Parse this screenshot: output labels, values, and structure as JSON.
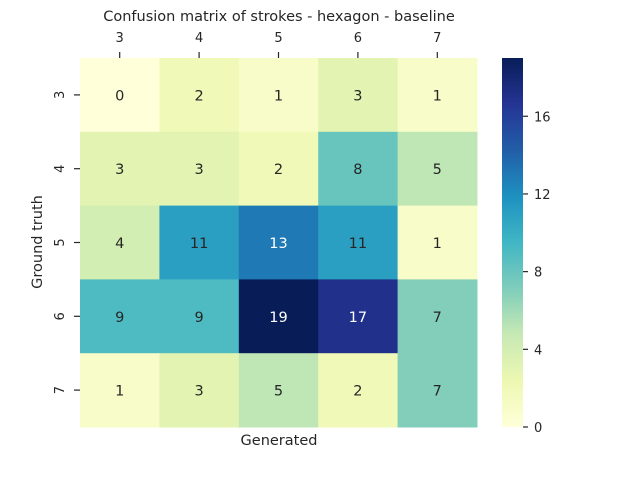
{
  "chart_data": {
    "type": "heatmap",
    "title": "Confusion matrix of strokes - hexagon - baseline",
    "xlabel": "Generated",
    "ylabel": "Ground truth",
    "x_categories": [
      "3",
      "4",
      "5",
      "6",
      "7"
    ],
    "y_categories": [
      "3",
      "4",
      "5",
      "6",
      "7"
    ],
    "values": [
      [
        0,
        2,
        1,
        3,
        1
      ],
      [
        3,
        3,
        2,
        8,
        5
      ],
      [
        4,
        11,
        13,
        11,
        1
      ],
      [
        9,
        9,
        19,
        17,
        7
      ],
      [
        1,
        3,
        5,
        2,
        7
      ]
    ],
    "colorscale": "YlGnBu",
    "vmin": 0,
    "vmax": 19,
    "colorbar_ticks": [
      "0",
      "4",
      "8",
      "12",
      "16"
    ],
    "x_axis_position": "top",
    "grid": false
  }
}
